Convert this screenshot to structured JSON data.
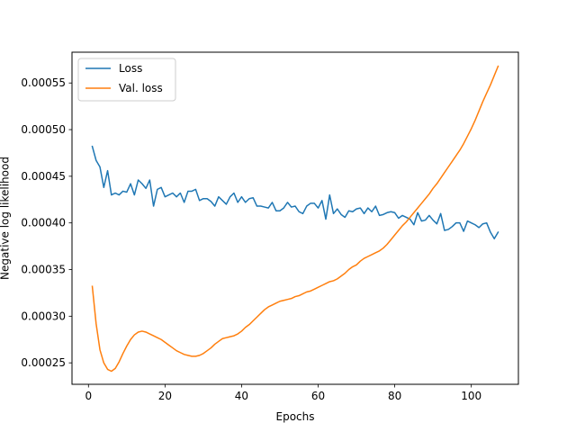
{
  "chart_data": {
    "type": "line",
    "title": "",
    "xlabel": "Epochs",
    "ylabel": "Negative log likelihood",
    "xlim": [
      -4.3,
      112.3
    ],
    "ylim": [
      0.000227,
      0.000583
    ],
    "xticks": [
      0,
      20,
      40,
      60,
      80,
      100
    ],
    "xtick_labels": [
      "0",
      "20",
      "40",
      "60",
      "80",
      "100"
    ],
    "yticks": [
      0.00025,
      0.0003,
      0.00035,
      0.0004,
      0.00045,
      0.0005,
      0.00055
    ],
    "ytick_labels": [
      "0.00025",
      "0.00030",
      "0.00035",
      "0.00040",
      "0.00045",
      "0.00050",
      "0.00055"
    ],
    "grid": false,
    "legend_position": "top-left",
    "series": [
      {
        "name": "Loss",
        "color": "#1f77b4",
        "x": [
          1,
          2,
          3,
          4,
          5,
          6,
          7,
          8,
          9,
          10,
          11,
          12,
          13,
          14,
          15,
          16,
          17,
          18,
          19,
          20,
          21,
          22,
          23,
          24,
          25,
          26,
          27,
          28,
          29,
          30,
          31,
          32,
          33,
          34,
          35,
          36,
          37,
          38,
          39,
          40,
          41,
          42,
          43,
          44,
          45,
          46,
          47,
          48,
          49,
          50,
          51,
          52,
          53,
          54,
          55,
          56,
          57,
          58,
          59,
          60,
          61,
          62,
          63,
          64,
          65,
          66,
          67,
          68,
          69,
          70,
          71,
          72,
          73,
          74,
          75,
          76,
          77,
          78,
          79,
          80,
          81,
          82,
          83,
          84,
          85,
          86,
          87,
          88,
          89,
          90,
          91,
          92,
          93,
          94,
          95,
          96,
          97,
          98,
          99,
          100,
          101,
          102,
          103,
          104,
          105,
          106,
          107
        ],
        "values": [
          0.000482,
          0.000467,
          0.00046,
          0.000438,
          0.000456,
          0.00043,
          0.000432,
          0.00043,
          0.000434,
          0.000433,
          0.000442,
          0.00043,
          0.000446,
          0.000442,
          0.000437,
          0.000446,
          0.000418,
          0.000436,
          0.000438,
          0.000428,
          0.00043,
          0.000432,
          0.000428,
          0.000432,
          0.000422,
          0.000434,
          0.000434,
          0.000436,
          0.000424,
          0.000426,
          0.000426,
          0.000423,
          0.000418,
          0.000428,
          0.000424,
          0.00042,
          0.000428,
          0.000432,
          0.000422,
          0.000428,
          0.000422,
          0.000426,
          0.000427,
          0.000418,
          0.000418,
          0.000417,
          0.000416,
          0.000422,
          0.000413,
          0.000413,
          0.000416,
          0.000422,
          0.000417,
          0.000418,
          0.000412,
          0.00041,
          0.000418,
          0.000421,
          0.000421,
          0.000416,
          0.000424,
          0.000404,
          0.00043,
          0.00041,
          0.000415,
          0.000409,
          0.000406,
          0.000413,
          0.000412,
          0.000415,
          0.000416,
          0.00041,
          0.000416,
          0.000412,
          0.000418,
          0.000408,
          0.000409,
          0.000411,
          0.000412,
          0.000411,
          0.000405,
          0.000408,
          0.000406,
          0.000404,
          0.000398,
          0.000411,
          0.000402,
          0.000403,
          0.000408,
          0.000403,
          0.000399,
          0.00041,
          0.000392,
          0.000393,
          0.000396,
          0.0004,
          0.0004,
          0.000391,
          0.000402,
          0.0004,
          0.000398,
          0.000395,
          0.000399,
          0.0004,
          0.00039,
          0.000383,
          0.00039
        ]
      },
      {
        "name": "Val. loss",
        "color": "#ff7f0e",
        "x": [
          1,
          2,
          3,
          4,
          5,
          6,
          7,
          8,
          9,
          10,
          11,
          12,
          13,
          14,
          15,
          16,
          17,
          18,
          19,
          20,
          21,
          22,
          23,
          24,
          25,
          26,
          27,
          28,
          29,
          30,
          31,
          32,
          33,
          34,
          35,
          36,
          37,
          38,
          39,
          40,
          41,
          42,
          43,
          44,
          45,
          46,
          47,
          48,
          49,
          50,
          51,
          52,
          53,
          54,
          55,
          56,
          57,
          58,
          59,
          60,
          61,
          62,
          63,
          64,
          65,
          66,
          67,
          68,
          69,
          70,
          71,
          72,
          73,
          74,
          75,
          76,
          77,
          78,
          79,
          80,
          81,
          82,
          83,
          84,
          85,
          86,
          87,
          88,
          89,
          90,
          91,
          92,
          93,
          94,
          95,
          96,
          97,
          98,
          99,
          100,
          101,
          102,
          103,
          104,
          105,
          106,
          107
        ],
        "values": [
          0.000332,
          0.000292,
          0.000264,
          0.00025,
          0.000243,
          0.000241,
          0.000244,
          0.000251,
          0.00026,
          0.000268,
          0.000275,
          0.00028,
          0.000283,
          0.000284,
          0.000283,
          0.000281,
          0.000279,
          0.000277,
          0.000275,
          0.000272,
          0.000269,
          0.000266,
          0.000263,
          0.000261,
          0.000259,
          0.000258,
          0.000257,
          0.000257,
          0.000258,
          0.00026,
          0.000263,
          0.000266,
          0.00027,
          0.000273,
          0.000276,
          0.000277,
          0.000278,
          0.000279,
          0.000281,
          0.000284,
          0.000288,
          0.000291,
          0.000295,
          0.000299,
          0.000303,
          0.000307,
          0.00031,
          0.000312,
          0.000314,
          0.000316,
          0.000317,
          0.000318,
          0.000319,
          0.000321,
          0.000322,
          0.000324,
          0.000326,
          0.000327,
          0.000329,
          0.000331,
          0.000333,
          0.000335,
          0.000337,
          0.000338,
          0.00034,
          0.000343,
          0.000346,
          0.00035,
          0.000353,
          0.000355,
          0.000359,
          0.000362,
          0.000364,
          0.000366,
          0.000368,
          0.00037,
          0.000373,
          0.000377,
          0.000382,
          0.000387,
          0.000392,
          0.000397,
          0.000401,
          0.000406,
          0.000411,
          0.000416,
          0.000421,
          0.000426,
          0.000431,
          0.000437,
          0.000442,
          0.000448,
          0.000454,
          0.00046,
          0.000466,
          0.000472,
          0.000478,
          0.000485,
          0.000493,
          0.000501,
          0.00051,
          0.00052,
          0.00053,
          0.000539,
          0.000548,
          0.000558,
          0.000568
        ]
      }
    ]
  }
}
